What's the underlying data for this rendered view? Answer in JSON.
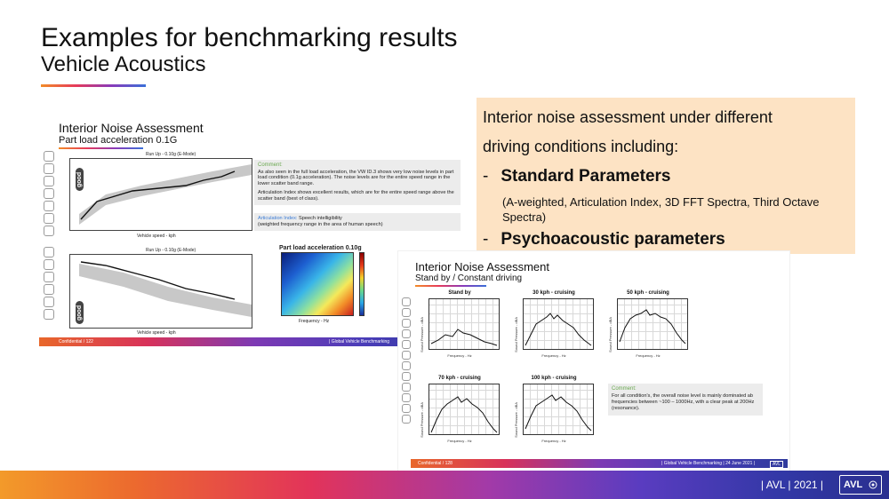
{
  "header": {
    "title": "Examples for benchmarking results",
    "subtitle": "Vehicle Acoustics"
  },
  "slide1": {
    "title": "Interior Noise Assessment",
    "subtitle": "Part load acceleration 0.1G",
    "plot_top_caption": "Run Up - 0.10g (E-Mode)",
    "plot_top_xlabel": "Vehicle speed - kph",
    "plot_top_ylabel": "Average Level - dB(A)",
    "plot_bottom_caption": "Run Up - 0.10g (E-Mode)",
    "plot_bottom_xlabel": "Vehicle speed - kph",
    "plot_bottom_ylabel": "Avl Articulation Index - %",
    "legend_vw": "VW ID.3",
    "legend_band": "AVL EV scatter band",
    "good_label": "good",
    "comment_head": "Comment:",
    "comment_p1": "As also seen in the full load acceleration, the VW ID.3 shows very low noise levels in part load condition (0.1g acceleration). The noise levels are for the entire speed range in the lower scatter band range.",
    "comment_p2": "Articulation Index shows excellent results, which are for the entire speed range above the scatter band (best of class).",
    "ai_head": "Articulation Index:",
    "ai_text": "Speech intelligibility",
    "ai_text2": "(weighted frequency range in the area of human speech)",
    "heatmap_title": "Part load acceleration 0.10g",
    "heatmap_xlabel": "Frequency - Hz",
    "heatmap_ylabel": "Vehicle speed - kph",
    "colorbar_label": "Sound Pressure - dBA",
    "footer_left": "Confidential   / 122",
    "footer_right": "| Global Vehicle Benchmarking"
  },
  "info_box": {
    "line1": "Interior noise assessment under different",
    "line2": "driving conditions including:",
    "bullet1": "Standard Parameters",
    "bullet1_note": "(A-weighted, Articulation Index,  3D FFT Spectra, Third Octave Spectra)",
    "bullet2": "Psychoacoustic parameters",
    "dash": "-"
  },
  "slide2": {
    "title": "Interior Noise Assessment",
    "subtitle": "Stand by / Constant driving",
    "plots": [
      {
        "title": "Stand by"
      },
      {
        "title": "30 kph - cruising"
      },
      {
        "title": "50 kph - cruising"
      },
      {
        "title": "70 kph - cruising"
      },
      {
        "title": "100 kph - cruising"
      }
    ],
    "xlabel": "Frequency - Hz",
    "ylabel": "Sound Pressure - dBA",
    "comment_head": "Comment:",
    "comment_text": "For all condition's, the overall noise level is mainly dominated ab frequencies between ~100 – 1000Hz, with a clear peak at 200Hz (resonance).",
    "footer_left": "Confidential   / 128",
    "footer_right": "| Global Vehicle Benchmarking | 24 June 2021 |",
    "footer_logo": "AVL"
  },
  "banner": {
    "text": "| AVL | 2021 |",
    "logo": "AVL"
  },
  "colors": {
    "info_box_bg": "#fde3c4",
    "comment_head": "#6aa84f",
    "articulation_head": "#3a7bd5"
  }
}
